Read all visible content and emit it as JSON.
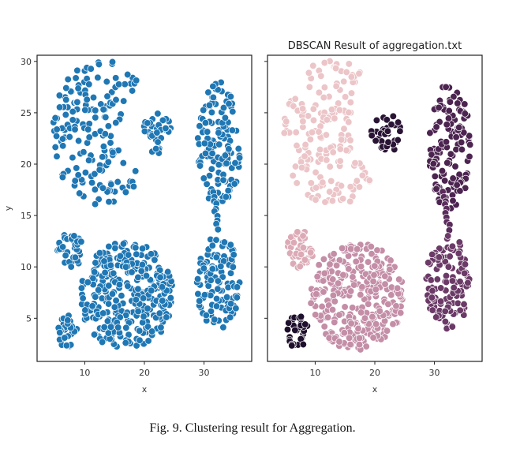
{
  "caption": "Fig. 9.  Clustering result for Aggregation.",
  "chart_data": [
    {
      "type": "scatter",
      "title": "",
      "xlabel": "x",
      "ylabel": "y",
      "xlim": [
        2,
        38
      ],
      "ylim": [
        0.8,
        30.6
      ],
      "xticks": [
        10,
        20,
        30
      ],
      "yticks": [
        5,
        10,
        15,
        20,
        25,
        30
      ],
      "grid": false,
      "point_color": "#1f77b4",
      "clusters": [
        {
          "shape": "crescent",
          "center": [
            13,
            23
          ],
          "radii": [
            8.5,
            7.2
          ],
          "count": 170
        },
        {
          "shape": "blob",
          "center": [
            22,
            23
          ],
          "radii": [
            2.6,
            2.0
          ],
          "count": 34
        },
        {
          "shape": "tall_blob",
          "center": [
            32.5,
            21.8
          ],
          "radii": [
            3.6,
            6.2
          ],
          "count": 130
        },
        {
          "shape": "bridge",
          "from": [
            31.5,
            17.5
          ],
          "to": [
            32.5,
            13.5
          ],
          "count": 10
        },
        {
          "shape": "tall_blob",
          "center": [
            32.3,
            8.5
          ],
          "radii": [
            3.7,
            4.6
          ],
          "count": 115
        },
        {
          "shape": "blob",
          "center": [
            7.5,
            11.7
          ],
          "radii": [
            2.3,
            1.8
          ],
          "count": 40
        },
        {
          "shape": "blob",
          "center": [
            17,
            7.2
          ],
          "radii": [
            7.8,
            5.3
          ],
          "count": 320
        },
        {
          "shape": "blob",
          "center": [
            7,
            3.7
          ],
          "radii": [
            1.8,
            1.6
          ],
          "count": 38
        }
      ]
    },
    {
      "type": "scatter",
      "title": "DBSCAN Result of aggregation.txt",
      "xlabel": "x",
      "ylabel": "",
      "xlim": [
        2,
        38
      ],
      "ylim": [
        0.8,
        30.6
      ],
      "xticks": [
        10,
        20,
        30
      ],
      "yticks": [
        5,
        10,
        15,
        20,
        25,
        30
      ],
      "grid": false,
      "clusters": [
        {
          "shape": "crescent",
          "center": [
            13,
            23
          ],
          "radii": [
            8.5,
            7.2
          ],
          "count": 170,
          "color": "#ecc5c8",
          "seed": 11
        },
        {
          "shape": "blob",
          "center": [
            22,
            23
          ],
          "radii": [
            2.6,
            2.0
          ],
          "count": 34,
          "color": "#2a1435",
          "seed": 12
        },
        {
          "shape": "tall_blob",
          "center": [
            32.5,
            21.8
          ],
          "radii": [
            3.6,
            6.2
          ],
          "count": 130,
          "color": "#4c2450",
          "seed": 13
        },
        {
          "shape": "bridge",
          "from": [
            31.5,
            17.5
          ],
          "to": [
            32.5,
            13.5
          ],
          "count": 10,
          "color": "#5a2c5c",
          "seed": 14
        },
        {
          "shape": "tall_blob",
          "center": [
            32.3,
            8.5
          ],
          "radii": [
            3.7,
            4.6
          ],
          "count": 115,
          "color": "#6b3a67",
          "seed": 15
        },
        {
          "shape": "blob",
          "center": [
            7.5,
            11.7
          ],
          "radii": [
            2.3,
            1.8
          ],
          "count": 40,
          "color": "#dcaab6",
          "seed": 16
        },
        {
          "shape": "blob",
          "center": [
            17,
            7.2
          ],
          "radii": [
            7.8,
            5.3
          ],
          "count": 320,
          "color": "#c48ea7",
          "seed": 17
        },
        {
          "shape": "blob",
          "center": [
            7,
            3.7
          ],
          "radii": [
            1.8,
            1.6
          ],
          "count": 38,
          "color": "#1e0f2c",
          "seed": 18
        }
      ]
    }
  ]
}
